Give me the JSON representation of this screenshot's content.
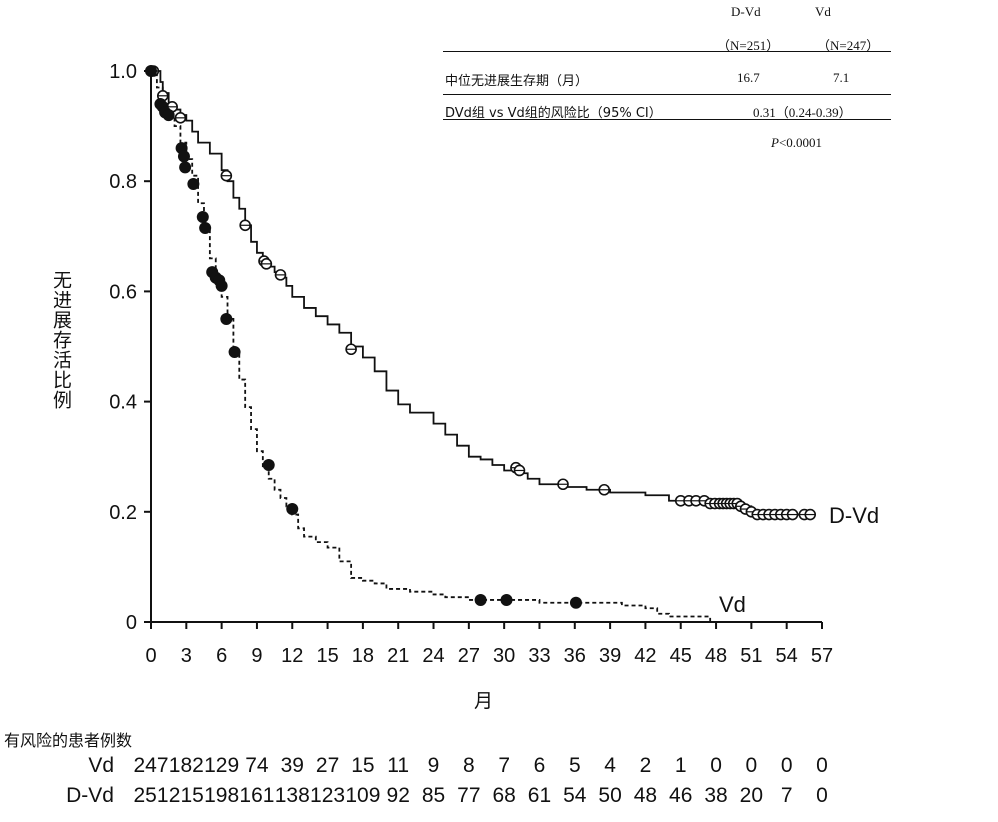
{
  "chart_data": {
    "type": "line",
    "ylabel": "无进展存活比例",
    "xlabel": "月",
    "x_ticks": [
      0,
      3,
      6,
      9,
      12,
      15,
      18,
      21,
      24,
      27,
      30,
      33,
      36,
      39,
      42,
      45,
      48,
      51,
      54,
      57
    ],
    "y_ticks": [
      {
        "value": 0,
        "label": "0"
      },
      {
        "value": 0.2,
        "label": "0.2"
      },
      {
        "value": 0.4,
        "label": "0.4"
      },
      {
        "value": 0.6,
        "label": "0.6"
      },
      {
        "value": 0.8,
        "label": "0.8"
      },
      {
        "value": 1.0,
        "label": "1.0"
      }
    ],
    "xlim": [
      0,
      57
    ],
    "ylim": [
      0,
      1.0
    ],
    "grid": false,
    "series": [
      {
        "name": "D-Vd",
        "line_style": "solid",
        "marker": "open-circle",
        "color": "#111111",
        "points": [
          [
            0,
            1.0
          ],
          [
            0.5,
            1.0
          ],
          [
            0.8,
            0.98
          ],
          [
            1,
            0.96
          ],
          [
            1.5,
            0.94
          ],
          [
            2,
            0.93
          ],
          [
            2.5,
            0.92
          ],
          [
            3,
            0.91
          ],
          [
            3.5,
            0.89
          ],
          [
            4,
            0.87
          ],
          [
            5,
            0.85
          ],
          [
            6,
            0.82
          ],
          [
            6.5,
            0.8
          ],
          [
            7,
            0.77
          ],
          [
            7.5,
            0.75
          ],
          [
            8,
            0.72
          ],
          [
            8.5,
            0.69
          ],
          [
            9,
            0.67
          ],
          [
            9.5,
            0.655
          ],
          [
            10,
            0.645
          ],
          [
            10.5,
            0.635
          ],
          [
            11,
            0.625
          ],
          [
            11.5,
            0.61
          ],
          [
            12,
            0.59
          ],
          [
            13,
            0.57
          ],
          [
            14,
            0.555
          ],
          [
            15,
            0.54
          ],
          [
            16,
            0.525
          ],
          [
            17,
            0.5
          ],
          [
            18,
            0.48
          ],
          [
            19,
            0.455
          ],
          [
            20,
            0.42
          ],
          [
            21,
            0.395
          ],
          [
            22,
            0.38
          ],
          [
            24,
            0.36
          ],
          [
            25,
            0.34
          ],
          [
            26,
            0.32
          ],
          [
            27,
            0.3
          ],
          [
            28,
            0.295
          ],
          [
            29,
            0.285
          ],
          [
            30,
            0.275
          ],
          [
            31,
            0.27
          ],
          [
            32,
            0.26
          ],
          [
            33,
            0.25
          ],
          [
            35,
            0.245
          ],
          [
            37,
            0.24
          ],
          [
            39,
            0.235
          ],
          [
            42,
            0.23
          ],
          [
            44,
            0.22
          ],
          [
            46,
            0.218
          ],
          [
            48,
            0.215
          ],
          [
            50,
            0.21
          ],
          [
            51,
            0.2
          ],
          [
            51.5,
            0.195
          ],
          [
            54,
            0.195
          ],
          [
            56,
            0.195
          ]
        ],
        "censored": [
          [
            0.2,
            1.0
          ],
          [
            1,
            0.955
          ],
          [
            1.8,
            0.935
          ],
          [
            2.5,
            0.915
          ],
          [
            6.4,
            0.81
          ],
          [
            8.0,
            0.72
          ],
          [
            9.6,
            0.655
          ],
          [
            9.8,
            0.65
          ],
          [
            11,
            0.63
          ],
          [
            17,
            0.495
          ],
          [
            31,
            0.28
          ],
          [
            31.3,
            0.275
          ],
          [
            35,
            0.25
          ],
          [
            38.5,
            0.24
          ],
          [
            45,
            0.22
          ],
          [
            45.7,
            0.22
          ],
          [
            46.3,
            0.22
          ],
          [
            47,
            0.22
          ],
          [
            47.5,
            0.215
          ],
          [
            47.9,
            0.215
          ],
          [
            48.3,
            0.215
          ],
          [
            48.6,
            0.215
          ],
          [
            48.9,
            0.215
          ],
          [
            49.2,
            0.215
          ],
          [
            49.5,
            0.215
          ],
          [
            49.8,
            0.215
          ],
          [
            50.1,
            0.21
          ],
          [
            50.5,
            0.205
          ],
          [
            51,
            0.2
          ],
          [
            51.5,
            0.195
          ],
          [
            52,
            0.195
          ],
          [
            52.5,
            0.195
          ],
          [
            53,
            0.195
          ],
          [
            53.5,
            0.195
          ],
          [
            54,
            0.195
          ],
          [
            54.5,
            0.195
          ],
          [
            55.5,
            0.195
          ],
          [
            56,
            0.195
          ]
        ]
      },
      {
        "name": "Vd",
        "line_style": "dashed",
        "marker": "filled-circle",
        "color": "#111111",
        "points": [
          [
            0,
            1.0
          ],
          [
            0.5,
            0.97
          ],
          [
            1,
            0.94
          ],
          [
            1.5,
            0.92
          ],
          [
            2,
            0.9
          ],
          [
            2.5,
            0.87
          ],
          [
            3,
            0.84
          ],
          [
            3.5,
            0.81
          ],
          [
            4,
            0.76
          ],
          [
            4.5,
            0.71
          ],
          [
            5,
            0.66
          ],
          [
            5.5,
            0.62
          ],
          [
            6,
            0.59
          ],
          [
            6.5,
            0.55
          ],
          [
            7,
            0.49
          ],
          [
            7.5,
            0.44
          ],
          [
            8,
            0.39
          ],
          [
            8.5,
            0.35
          ],
          [
            9,
            0.31
          ],
          [
            9.5,
            0.28
          ],
          [
            10,
            0.26
          ],
          [
            10.5,
            0.24
          ],
          [
            11,
            0.225
          ],
          [
            11.5,
            0.21
          ],
          [
            12,
            0.195
          ],
          [
            12.5,
            0.17
          ],
          [
            13,
            0.155
          ],
          [
            14,
            0.145
          ],
          [
            15,
            0.135
          ],
          [
            16,
            0.11
          ],
          [
            17,
            0.08
          ],
          [
            18,
            0.075
          ],
          [
            19,
            0.07
          ],
          [
            20,
            0.06
          ],
          [
            22,
            0.055
          ],
          [
            24,
            0.05
          ],
          [
            25,
            0.045
          ],
          [
            27,
            0.04
          ],
          [
            30,
            0.04
          ],
          [
            33,
            0.035
          ],
          [
            36,
            0.035
          ],
          [
            40,
            0.03
          ],
          [
            42,
            0.025
          ],
          [
            43,
            0.015
          ],
          [
            44,
            0.01
          ],
          [
            47,
            0.01
          ],
          [
            47.5,
            0
          ]
        ],
        "censored": [
          [
            0,
            1.0
          ],
          [
            0.8,
            0.94
          ],
          [
            1,
            0.935
          ],
          [
            1.2,
            0.925
          ],
          [
            1.5,
            0.92
          ],
          [
            2.6,
            0.86
          ],
          [
            2.8,
            0.845
          ],
          [
            2.9,
            0.825
          ],
          [
            3.6,
            0.795
          ],
          [
            4.4,
            0.735
          ],
          [
            4.6,
            0.715
          ],
          [
            5.2,
            0.635
          ],
          [
            5.5,
            0.625
          ],
          [
            5.8,
            0.62
          ],
          [
            6.0,
            0.61
          ],
          [
            6.4,
            0.55
          ],
          [
            7.1,
            0.49
          ],
          [
            10.0,
            0.285
          ],
          [
            12.0,
            0.205
          ],
          [
            28,
            0.04
          ],
          [
            30.2,
            0.04
          ],
          [
            36.1,
            0.035
          ]
        ]
      }
    ]
  },
  "summary_table": {
    "col_headers": [
      "D-Vd",
      "Vd"
    ],
    "col_ns": [
      "（N=251）",
      "（N=247）"
    ],
    "row1_label": "中位无进展生存期（月）",
    "row1_values": [
      "16.7",
      "7.1"
    ],
    "row2_label": "DVd组  vs Vd组的风险比（95% CI）",
    "row2_value": "0.31（0.24-0.39）",
    "p_italic": "P",
    "p_rest": "<0.0001"
  },
  "risk_table": {
    "title": "有风险的患者例数",
    "rows": [
      {
        "label": "Vd",
        "values": [
          "247",
          "182",
          "129",
          "74",
          "39",
          "27",
          "15",
          "11",
          "9",
          "8",
          "7",
          "6",
          "5",
          "4",
          "2",
          "1",
          "0",
          "0",
          "0",
          "0"
        ]
      },
      {
        "label": "D-Vd",
        "values": [
          "251",
          "215",
          "198",
          "161",
          "138",
          "123",
          "109",
          "92",
          "85",
          "77",
          "68",
          "61",
          "54",
          "50",
          "48",
          "46",
          "38",
          "20",
          "7",
          "0"
        ]
      }
    ]
  }
}
